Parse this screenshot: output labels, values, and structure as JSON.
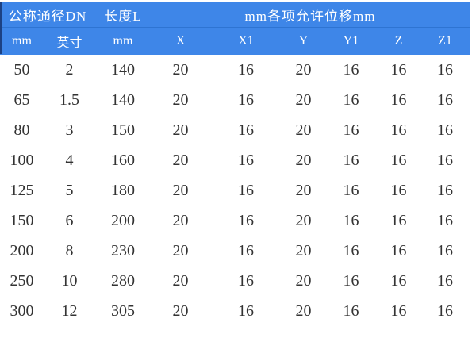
{
  "table": {
    "header_row1": [
      {
        "label": "公称通径DN",
        "colspan": 2
      },
      {
        "label": "长度L",
        "colspan": 1
      },
      {
        "label": "mm各项允许位移mm",
        "colspan": 6
      }
    ],
    "header_row2": [
      "mm",
      "英寸",
      "mm",
      "X",
      "X1",
      "Y",
      "Y1",
      "Z",
      "Z1"
    ],
    "rows": [
      [
        "50",
        "2",
        "140",
        "20",
        "16",
        "20",
        "16",
        "16",
        "16"
      ],
      [
        "65",
        "1.5",
        "140",
        "20",
        "16",
        "20",
        "16",
        "16",
        "16"
      ],
      [
        "80",
        "3",
        "150",
        "20",
        "16",
        "20",
        "16",
        "16",
        "16"
      ],
      [
        "100",
        "4",
        "160",
        "20",
        "16",
        "20",
        "16",
        "16",
        "16"
      ],
      [
        "125",
        "5",
        "180",
        "20",
        "16",
        "20",
        "16",
        "16",
        "16"
      ],
      [
        "150",
        "6",
        "200",
        "20",
        "16",
        "20",
        "16",
        "16",
        "16"
      ],
      [
        "200",
        "8",
        "230",
        "20",
        "16",
        "20",
        "16",
        "16",
        "16"
      ],
      [
        "250",
        "10",
        "280",
        "20",
        "16",
        "20",
        "16",
        "16",
        "16"
      ],
      [
        "300",
        "12",
        "305",
        "20",
        "16",
        "20",
        "16",
        "16",
        "16"
      ]
    ]
  },
  "colors": {
    "page_bg": "#ffffff",
    "header_bg": "#3e86e8",
    "header_text": "#ffffff",
    "header_left_accent": "#1c4183",
    "header_row_divider": "#2e74d2",
    "body_text": "#333333"
  }
}
